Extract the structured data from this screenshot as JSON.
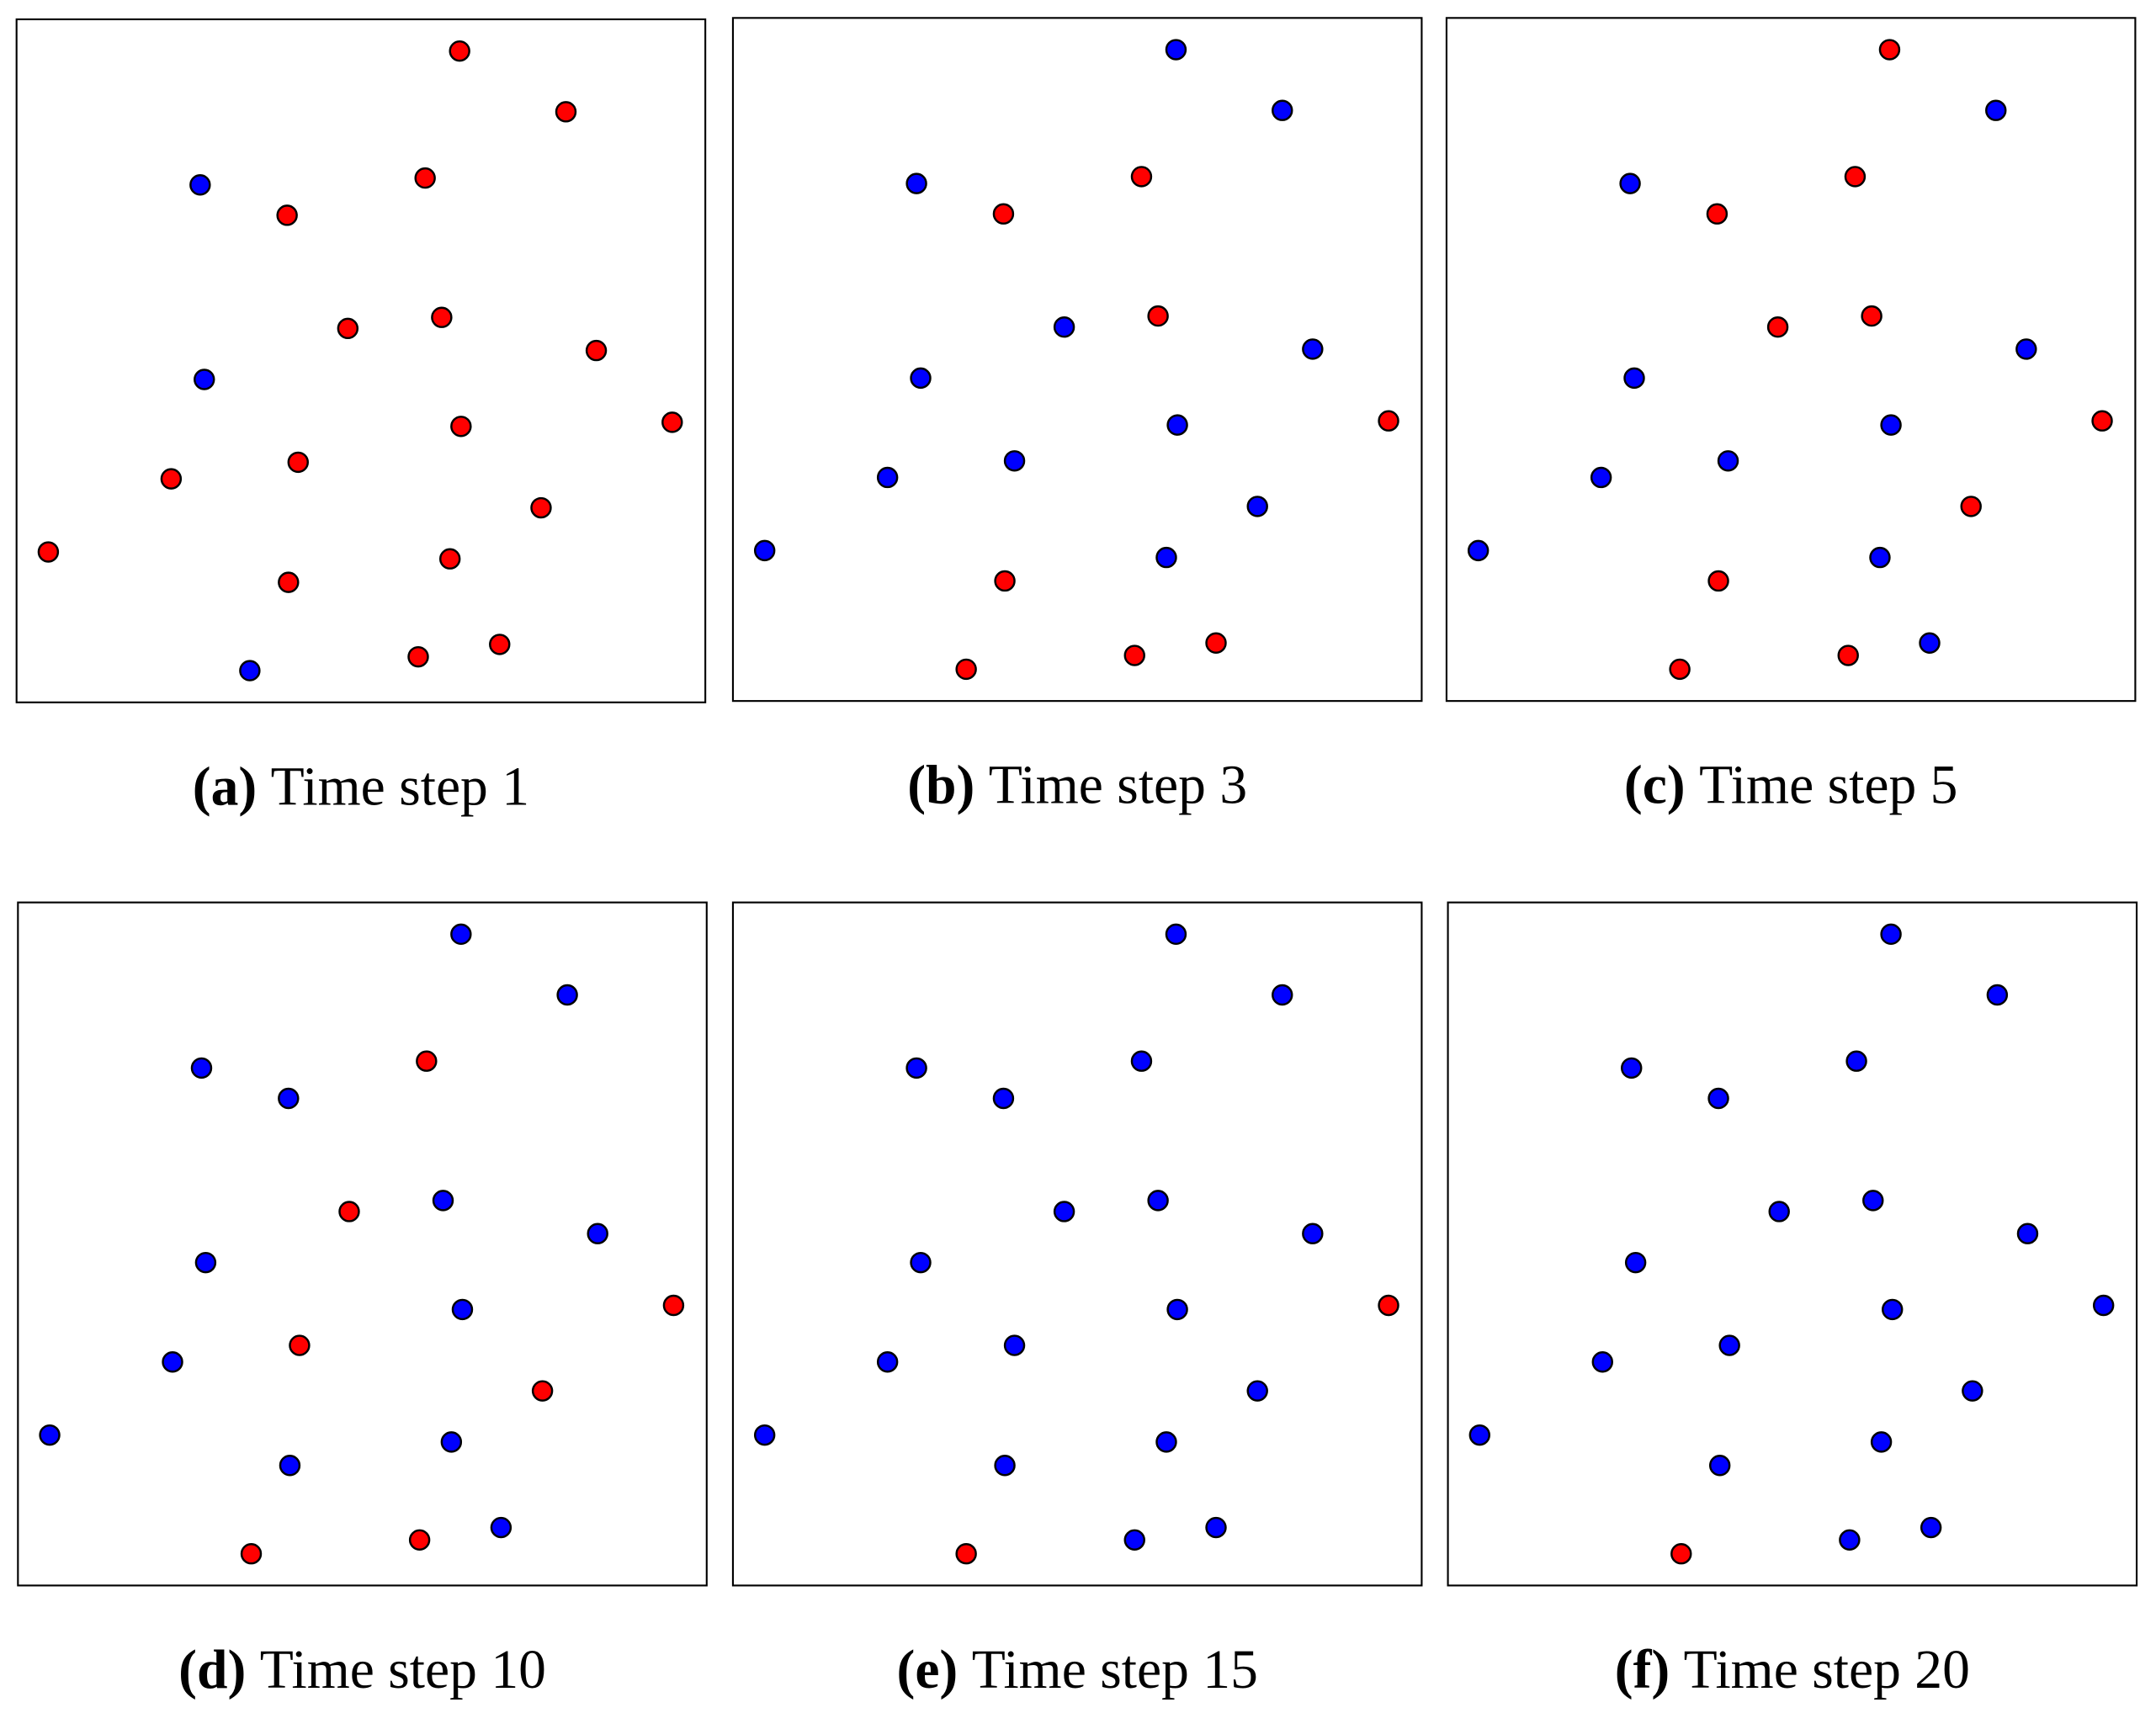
{
  "panels": [
    {
      "label": "(a)",
      "caption": "Time step 1",
      "nodes": [
        "#ff0000",
        "#ff0000",
        "#0000ff",
        "#ff0000",
        "#ff0000",
        "#ff0000",
        "#ff0000",
        "#ff0000",
        "#0000ff",
        "#ff0000",
        "#ff0000",
        "#ff0000",
        "#ff0000",
        "#ff0000",
        "#ff0000",
        "#ff0000",
        "#ff0000",
        "#ff0000",
        "#ff0000",
        "#0000ff"
      ]
    },
    {
      "label": "(b)",
      "caption": "Time step 3",
      "nodes": [
        "#0000ff",
        "#0000ff",
        "#0000ff",
        "#ff0000",
        "#ff0000",
        "#0000ff",
        "#ff0000",
        "#0000ff",
        "#0000ff",
        "#0000ff",
        "#ff0000",
        "#0000ff",
        "#0000ff",
        "#0000ff",
        "#0000ff",
        "#ff0000",
        "#0000ff",
        "#ff0000",
        "#ff0000",
        "#ff0000"
      ]
    },
    {
      "label": "(c)",
      "caption": "Time step 5",
      "nodes": [
        "#ff0000",
        "#0000ff",
        "#0000ff",
        "#ff0000",
        "#ff0000",
        "#ff0000",
        "#ff0000",
        "#0000ff",
        "#0000ff",
        "#0000ff",
        "#ff0000",
        "#0000ff",
        "#0000ff",
        "#ff0000",
        "#0000ff",
        "#ff0000",
        "#0000ff",
        "#0000ff",
        "#ff0000",
        "#ff0000"
      ]
    },
    {
      "label": "(d)",
      "caption": "Time step 10",
      "nodes": [
        "#0000ff",
        "#0000ff",
        "#0000ff",
        "#0000ff",
        "#ff0000",
        "#ff0000",
        "#0000ff",
        "#0000ff",
        "#0000ff",
        "#0000ff",
        "#ff0000",
        "#0000ff",
        "#ff0000",
        "#ff0000",
        "#0000ff",
        "#0000ff",
        "#0000ff",
        "#0000ff",
        "#ff0000",
        "#ff0000"
      ]
    },
    {
      "label": "(e)",
      "caption": "Time step 15",
      "nodes": [
        "#0000ff",
        "#0000ff",
        "#0000ff",
        "#0000ff",
        "#0000ff",
        "#0000ff",
        "#0000ff",
        "#0000ff",
        "#0000ff",
        "#0000ff",
        "#ff0000",
        "#0000ff",
        "#0000ff",
        "#0000ff",
        "#0000ff",
        "#0000ff",
        "#0000ff",
        "#0000ff",
        "#0000ff",
        "#ff0000"
      ]
    },
    {
      "label": "(f)",
      "caption": "Time step 20",
      "nodes": [
        "#0000ff",
        "#0000ff",
        "#0000ff",
        "#0000ff",
        "#0000ff",
        "#0000ff",
        "#0000ff",
        "#0000ff",
        "#0000ff",
        "#0000ff",
        "#0000ff",
        "#0000ff",
        "#0000ff",
        "#0000ff",
        "#0000ff",
        "#0000ff",
        "#0000ff",
        "#0000ff",
        "#0000ff",
        "#ff0000"
      ]
    }
  ]
}
